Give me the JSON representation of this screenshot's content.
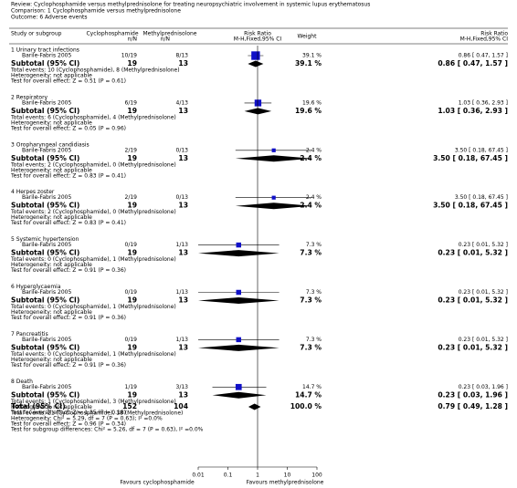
{
  "header": {
    "review": "Review:  Cyclophosphamide versus methylprednisolone for treating neuropsychiatric involvement in systemic lupus erythematosus",
    "comparison": "Comparison: 1 Cyclophosphamide versus methylprednisolone",
    "outcome": "Outcome: 6 Adverse events"
  },
  "chart_data": {
    "type": "forest",
    "columns": {
      "study": "Study or subgroup",
      "exp": "Cyclophosphamide",
      "exp_sub": "n/N",
      "ctrl": "Methylprednisolone",
      "ctrl_sub": "n/N",
      "plot": "Risk Ratio",
      "plot_sub": "M-H,Fixed,95% CI",
      "weight": "Weight",
      "rr": "Risk Ratio",
      "rr_sub": "M-H,Fixed,95% CI"
    },
    "xlim": [
      0.01,
      100
    ],
    "xticks": [
      0.01,
      0.1,
      1,
      10,
      100
    ],
    "log_scale": true,
    "favours_left": "Favours cyclophosphamide",
    "favours_right": "Favours methylprednisolone",
    "colors": {
      "study": "#1010c8",
      "summary": "#000000"
    },
    "subgroups": [
      {
        "title": "1 Urinary tract infections",
        "studies": [
          {
            "name": "Barile-Fabris 2005",
            "exp": "10/19",
            "ctrl": "8/13",
            "weight": 39.1,
            "weight_label": "39.1 %",
            "rr": 0.86,
            "lo": 0.47,
            "hi": 1.57,
            "rr_label": "0.86 [ 0.47, 1.57 ]"
          }
        ],
        "subtotal": {
          "label": "Subtotal (95% CI)",
          "exp_n": 19,
          "ctrl_n": 13,
          "weight": 39.1,
          "weight_label": "39.1 %",
          "rr": 0.86,
          "lo": 0.47,
          "hi": 1.57,
          "rr_label": "0.86 [ 0.47, 1.57 ]"
        },
        "notes": [
          "Total events: 10 (Cyclophosphamide), 8 (Methylprednisolone)",
          "Heterogeneity: not applicable",
          "Test for overall effect: Z = 0.51 (P = 0.61)"
        ]
      },
      {
        "title": "2 Respiratory",
        "studies": [
          {
            "name": "Barile-Fabris 2005",
            "exp": "6/19",
            "ctrl": "4/13",
            "weight": 19.6,
            "weight_label": "19.6 %",
            "rr": 1.03,
            "lo": 0.36,
            "hi": 2.93,
            "rr_label": "1.03 [ 0.36, 2.93 ]"
          }
        ],
        "subtotal": {
          "label": "Subtotal (95% CI)",
          "exp_n": 19,
          "ctrl_n": 13,
          "weight": 19.6,
          "weight_label": "19.6 %",
          "rr": 1.03,
          "lo": 0.36,
          "hi": 2.93,
          "rr_label": "1.03 [ 0.36, 2.93 ]"
        },
        "notes": [
          "Total events: 6 (Cyclophosphamide), 4 (Methylprednisolone)",
          "Heterogeneity: not applicable",
          "Test for overall effect: Z = 0.05 (P = 0.96)"
        ]
      },
      {
        "title": "3 Oropharyngeal candidiasis",
        "studies": [
          {
            "name": "Barile-Fabris 2005",
            "exp": "2/19",
            "ctrl": "0/13",
            "weight": 2.4,
            "weight_label": "2.4 %",
            "rr": 3.5,
            "lo": 0.18,
            "hi": 67.45,
            "rr_label": "3.50 [ 0.18, 67.45 ]"
          }
        ],
        "subtotal": {
          "label": "Subtotal (95% CI)",
          "exp_n": 19,
          "ctrl_n": 13,
          "weight": 2.4,
          "weight_label": "2.4 %",
          "rr": 3.5,
          "lo": 0.18,
          "hi": 67.45,
          "rr_label": "3.50 [ 0.18, 67.45 ]"
        },
        "notes": [
          "Total events: 2 (Cyclophosphamide), 0 (Methylprednisolone)",
          "Heterogeneity: not applicable",
          "Test for overall effect: Z = 0.83 (P = 0.41)"
        ]
      },
      {
        "title": "4 Herpes zoster",
        "studies": [
          {
            "name": "Barile-Fabris 2005",
            "exp": "2/19",
            "ctrl": "0/13",
            "weight": 2.4,
            "weight_label": "2.4 %",
            "rr": 3.5,
            "lo": 0.18,
            "hi": 67.45,
            "rr_label": "3.50 [ 0.18, 67.45 ]"
          }
        ],
        "subtotal": {
          "label": "Subtotal (95% CI)",
          "exp_n": 19,
          "ctrl_n": 13,
          "weight": 2.4,
          "weight_label": "2.4 %",
          "rr": 3.5,
          "lo": 0.18,
          "hi": 67.45,
          "rr_label": "3.50 [ 0.18, 67.45 ]"
        },
        "notes": [
          "Total events: 2 (Cyclophosphamide), 0 (Methylprednisolone)",
          "Heterogeneity: not applicable",
          "Test for overall effect: Z = 0.83 (P = 0.41)"
        ]
      },
      {
        "title": "5 Systemic hypertension",
        "studies": [
          {
            "name": "Barile-Fabris 2005",
            "exp": "0/19",
            "ctrl": "1/13",
            "weight": 7.3,
            "weight_label": "7.3 %",
            "rr": 0.23,
            "lo": 0.01,
            "hi": 5.32,
            "rr_label": "0.23 [ 0.01, 5.32 ]"
          }
        ],
        "subtotal": {
          "label": "Subtotal (95% CI)",
          "exp_n": 19,
          "ctrl_n": 13,
          "weight": 7.3,
          "weight_label": "7.3 %",
          "rr": 0.23,
          "lo": 0.01,
          "hi": 5.32,
          "rr_label": "0.23 [ 0.01, 5.32 ]"
        },
        "notes": [
          "Total events: 0 (Cyclophosphamide), 1 (Methylprednisolone)",
          "Heterogeneity: not applicable",
          "Test for overall effect: Z = 0.91 (P = 0.36)"
        ]
      },
      {
        "title": "6 Hyperglycaemia",
        "studies": [
          {
            "name": "Barile-Fabris 2005",
            "exp": "0/19",
            "ctrl": "1/13",
            "weight": 7.3,
            "weight_label": "7.3 %",
            "rr": 0.23,
            "lo": 0.01,
            "hi": 5.32,
            "rr_label": "0.23 [ 0.01, 5.32 ]"
          }
        ],
        "subtotal": {
          "label": "Subtotal (95% CI)",
          "exp_n": 19,
          "ctrl_n": 13,
          "weight": 7.3,
          "weight_label": "7.3 %",
          "rr": 0.23,
          "lo": 0.01,
          "hi": 5.32,
          "rr_label": "0.23 [ 0.01, 5.32 ]"
        },
        "notes": [
          "Total events: 0 (Cyclophosphamide), 1 (Methylprednisolone)",
          "Heterogeneity: not applicable",
          "Test for overall effect: Z = 0.91 (P = 0.36)"
        ]
      },
      {
        "title": "7 Pancreatitis",
        "studies": [
          {
            "name": "Barile-Fabris 2005",
            "exp": "0/19",
            "ctrl": "1/13",
            "weight": 7.3,
            "weight_label": "7.3 %",
            "rr": 0.23,
            "lo": 0.01,
            "hi": 5.32,
            "rr_label": "0.23 [ 0.01, 5.32 ]"
          }
        ],
        "subtotal": {
          "label": "Subtotal (95% CI)",
          "exp_n": 19,
          "ctrl_n": 13,
          "weight": 7.3,
          "weight_label": "7.3 %",
          "rr": 0.23,
          "lo": 0.01,
          "hi": 5.32,
          "rr_label": "0.23 [ 0.01, 5.32 ]"
        },
        "notes": [
          "Total events: 0 (Cyclophosphamide), 1 (Methylprednisolone)",
          "Heterogeneity: not applicable",
          "Test for overall effect: Z = 0.91 (P = 0.36)"
        ]
      },
      {
        "title": "8 Death",
        "studies": [
          {
            "name": "Barile-Fabris 2005",
            "exp": "1/19",
            "ctrl": "3/13",
            "weight": 14.7,
            "weight_label": "14.7 %",
            "rr": 0.23,
            "lo": 0.03,
            "hi": 1.96,
            "rr_label": "0.23 [ 0.03, 1.96 ]"
          }
        ],
        "subtotal": {
          "label": "Subtotal (95% CI)",
          "exp_n": 19,
          "ctrl_n": 13,
          "weight": 14.7,
          "weight_label": "14.7 %",
          "rr": 0.23,
          "lo": 0.03,
          "hi": 1.96,
          "rr_label": "0.23 [ 0.03, 1.96 ]"
        },
        "notes": [
          "Total events: 1 (Cyclophosphamide), 3 (Methylprednisolone)",
          "Heterogeneity: not applicable",
          "Test for overall effect: Z = 1.35 (P = 0.18)"
        ]
      }
    ],
    "total": {
      "label": "Total (95% CI)",
      "exp_n": 152,
      "ctrl_n": 104,
      "weight": 100.0,
      "weight_label": "100.0 %",
      "rr": 0.79,
      "lo": 0.49,
      "hi": 1.28,
      "rr_label": "0.79 [ 0.49, 1.28 ]",
      "notes": [
        "Total events: 21 (Cyclophosphamide), 18 (Methylprednisolone)",
        "Heterogeneity: Chi² = 5.29, df = 7 (P = 0.63); I² =0.0%",
        "Test for overall effect: Z = 0.96 (P = 0.34)",
        "Test for subgroup differences: Chi² = 5.26, df = 7 (P = 0.63), I² =0.0%"
      ]
    }
  }
}
